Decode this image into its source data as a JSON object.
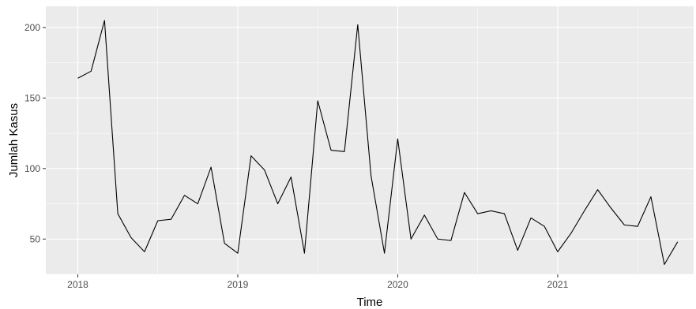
{
  "chart_data": {
    "type": "line",
    "title": "",
    "xlabel": "Time",
    "ylabel": "Jumlah Kasus",
    "xlim": [
      2017.8,
      2021.85
    ],
    "ylim": [
      25,
      215
    ],
    "x_ticks": [
      2018,
      2019,
      2020,
      2021
    ],
    "x_tick_labels": [
      "2018",
      "2019",
      "2020",
      "2021"
    ],
    "y_ticks": [
      50,
      100,
      150,
      200
    ],
    "y_tick_labels": [
      "50",
      "100",
      "150",
      "200"
    ],
    "grid": true,
    "legend": "none",
    "line_color": "#000000",
    "panel_color": "#ebebeb",
    "grid_color": "#ffffff",
    "x": [
      2018.0,
      2018.083,
      2018.167,
      2018.25,
      2018.333,
      2018.417,
      2018.5,
      2018.583,
      2018.667,
      2018.75,
      2018.833,
      2018.917,
      2019.0,
      2019.083,
      2019.167,
      2019.25,
      2019.333,
      2019.417,
      2019.5,
      2019.583,
      2019.667,
      2019.75,
      2019.833,
      2019.917,
      2020.0,
      2020.083,
      2020.167,
      2020.25,
      2020.333,
      2020.417,
      2020.5,
      2020.583,
      2020.667,
      2020.75,
      2020.833,
      2020.917,
      2021.0,
      2021.083,
      2021.167,
      2021.25,
      2021.333,
      2021.417,
      2021.5,
      2021.583,
      2021.667,
      2021.75
    ],
    "values": [
      164,
      169,
      205,
      68,
      51,
      41,
      63,
      64,
      81,
      75,
      101,
      47,
      40,
      109,
      99,
      75,
      94,
      40,
      148,
      113,
      112,
      202,
      95,
      40,
      121,
      50,
      67,
      50,
      49,
      83,
      68,
      70,
      68,
      42,
      65,
      59,
      41,
      54,
      70,
      85,
      72,
      60,
      59,
      80,
      32,
      48
    ]
  }
}
